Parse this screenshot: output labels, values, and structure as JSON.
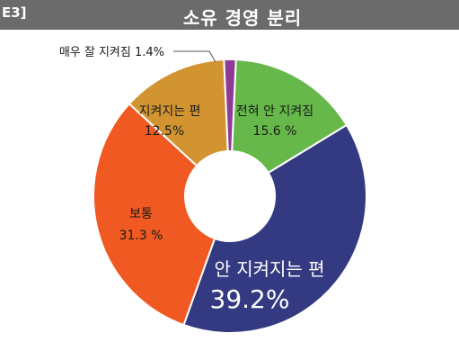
{
  "header": {
    "figure_label": "E3]",
    "title": "소유 경영 분리"
  },
  "colors": {
    "header_bg": "#6b6b6b"
  },
  "chart_data": {
    "type": "pie",
    "donut": true,
    "title": "소유 경영 분리",
    "slices": [
      {
        "label": "전혀  안 지켜짐",
        "value": 15.6,
        "value_text": "15.6 %",
        "color": "#66b84a"
      },
      {
        "label": "안 지켜지는 편",
        "value": 39.2,
        "value_text": "39.2%",
        "color": "#333a82"
      },
      {
        "label": "보통",
        "value": 31.3,
        "value_text": "31.3 %",
        "color": "#f05a22"
      },
      {
        "label": "지켜지는 편",
        "value": 12.5,
        "value_text": "12.5%",
        "color": "#d19431"
      },
      {
        "label": "매우 잘 지켜짐",
        "value": 1.4,
        "value_text": "1.4%",
        "color": "#8e3b96"
      }
    ],
    "callout_label": "매우 잘 지켜짐  1.4%"
  }
}
